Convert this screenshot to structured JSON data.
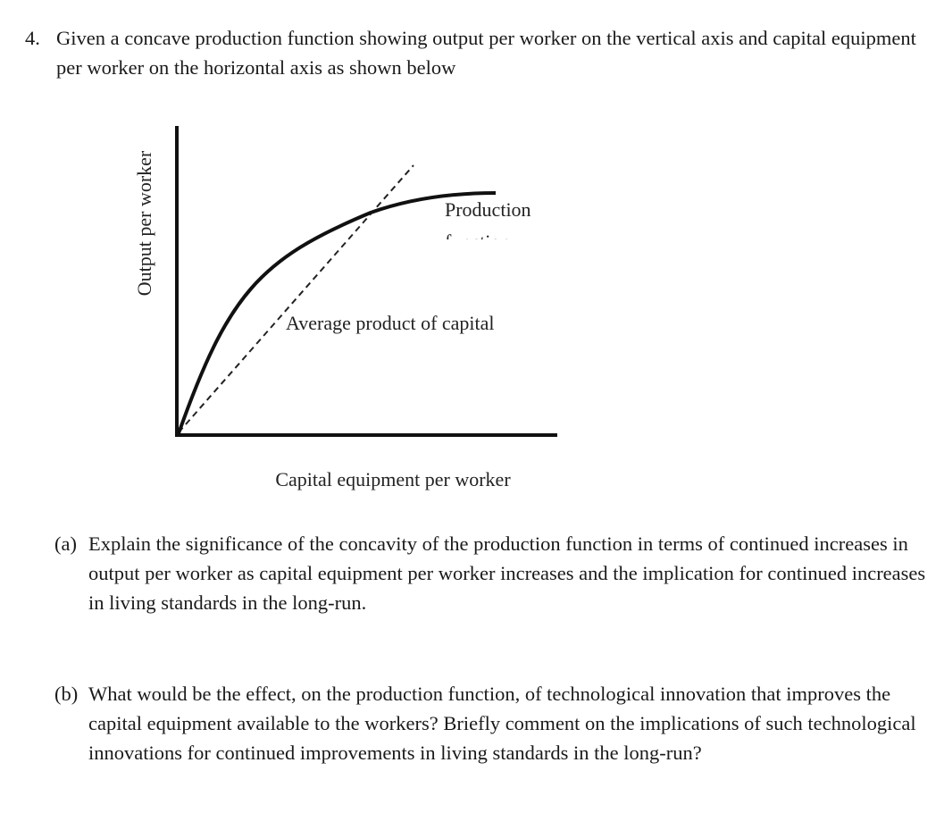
{
  "question": {
    "number": "4.",
    "text": "Given a concave production function showing output per worker on the vertical axis and capital equipment per worker on the horizontal axis as shown below"
  },
  "figure": {
    "y_axis_label": "Output per worker",
    "x_axis_label": "Capital equipment per worker",
    "curve_label_line1": "Production",
    "curve_label_line2": "function",
    "ray_label": "Average product of capital"
  },
  "parts": [
    {
      "label": "(a)",
      "text": "Explain the significance of the concavity of the production function in terms of continued increases in output per worker as capital equipment per worker increases and the implication for continued increases in living standards in the long-run."
    },
    {
      "label": "(b)",
      "text": "What would be the effect, on the production function, of technological innovation that improves the capital equipment available to the workers? Briefly comment on the implications of such technological innovations for continued improvements in living standards in the long-run?"
    }
  ],
  "colors": {
    "ink": "#1a1a1a",
    "background": "#ffffff"
  }
}
